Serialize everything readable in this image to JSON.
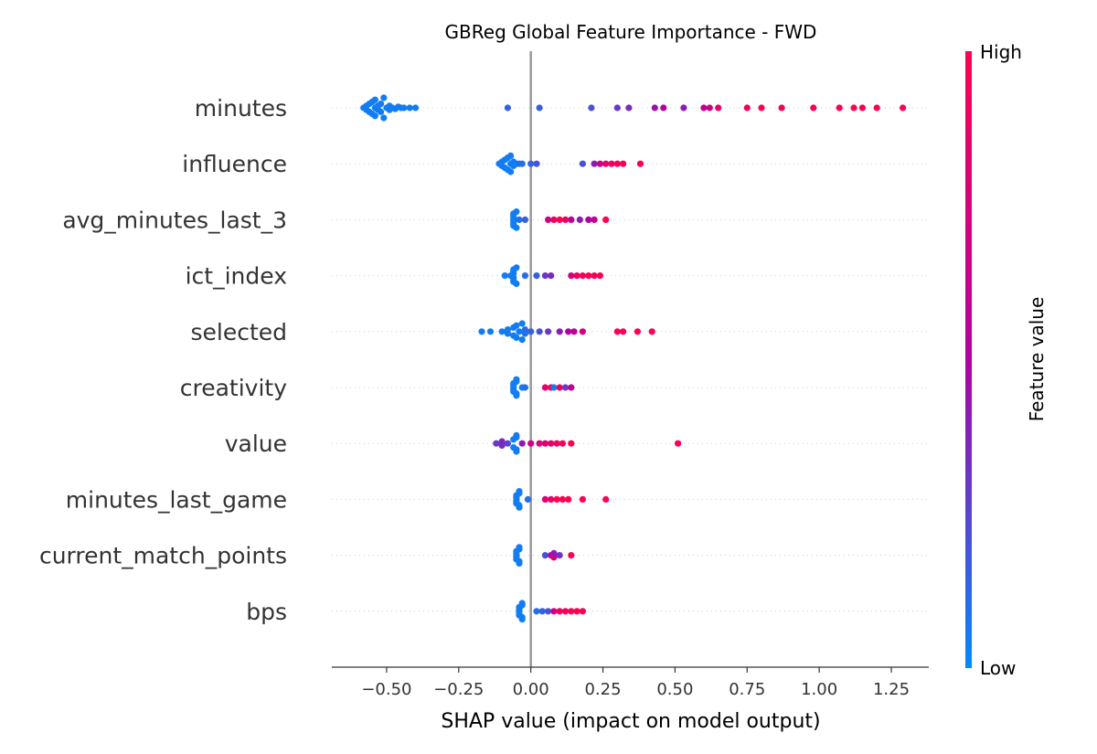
{
  "chart_data": {
    "type": "scatter",
    "subtype": "shap-beeswarm",
    "title": "GBReg Global Feature Importance - FWD",
    "xlabel": "SHAP value (impact on model output)",
    "xlim": [
      -0.69,
      1.38
    ],
    "xticks": [
      -0.5,
      -0.25,
      0.0,
      0.25,
      0.5,
      0.75,
      1.0,
      1.25
    ],
    "xtick_labels": [
      "−0.50",
      "−0.25",
      "0.00",
      "0.25",
      "0.50",
      "0.75",
      "1.00",
      "1.25"
    ],
    "colorbar": {
      "label": "Feature value",
      "high_label": "High",
      "low_label": "Low",
      "low_color": "#008bfb",
      "mid_color": "#b000a3",
      "high_color": "#ff0052"
    },
    "features": [
      {
        "name": "minutes",
        "points": [
          [
            -0.58,
            0.0
          ],
          [
            -0.57,
            0.1
          ],
          [
            -0.57,
            -0.1
          ],
          [
            -0.56,
            0.2
          ],
          [
            -0.56,
            -0.2
          ],
          [
            -0.55,
            0.3
          ],
          [
            -0.55,
            -0.3
          ],
          [
            -0.54,
            0.0
          ],
          [
            -0.54,
            0.4
          ],
          [
            -0.54,
            -0.4
          ],
          [
            -0.53,
            0.1
          ],
          [
            -0.53,
            -0.1
          ],
          [
            -0.52,
            0.2
          ],
          [
            -0.52,
            -0.2
          ],
          [
            -0.51,
            0.5
          ],
          [
            -0.51,
            -0.5
          ],
          [
            -0.5,
            0.0
          ],
          [
            -0.49,
            0.1
          ],
          [
            -0.49,
            -0.1
          ],
          [
            -0.48,
            0.0
          ],
          [
            -0.47,
            0.05
          ],
          [
            -0.46,
            -0.05
          ],
          [
            -0.45,
            0.0
          ],
          [
            -0.44,
            0.0
          ],
          [
            -0.42,
            0.0
          ],
          [
            -0.4,
            0.0
          ],
          [
            -0.08,
            0.0
          ],
          [
            0.03,
            0.0
          ],
          [
            0.21,
            0.0
          ],
          [
            0.3,
            0.0
          ],
          [
            0.34,
            0.0
          ],
          [
            0.43,
            0.0
          ],
          [
            0.46,
            0.0
          ],
          [
            0.53,
            0.0
          ],
          [
            0.6,
            0.0
          ],
          [
            0.62,
            0.0
          ],
          [
            0.65,
            0.0
          ],
          [
            0.75,
            0.0
          ],
          [
            0.8,
            0.0
          ],
          [
            0.87,
            0.0
          ],
          [
            0.98,
            0.0
          ],
          [
            1.07,
            0.0
          ],
          [
            1.12,
            0.0
          ],
          [
            1.15,
            0.0
          ],
          [
            1.2,
            0.0
          ],
          [
            1.29,
            0.0
          ]
        ],
        "colors": [
          0.05,
          0.05,
          0.05,
          0.05,
          0.05,
          0.05,
          0.05,
          0.05,
          0.05,
          0.05,
          0.05,
          0.05,
          0.05,
          0.05,
          0.05,
          0.05,
          0.05,
          0.05,
          0.05,
          0.05,
          0.05,
          0.05,
          0.05,
          0.05,
          0.05,
          0.05,
          0.15,
          0.15,
          0.2,
          0.3,
          0.35,
          0.45,
          0.55,
          0.4,
          0.6,
          0.7,
          0.85,
          0.9,
          0.95,
          0.95,
          1.0,
          1.0,
          1.0,
          1.0,
          1.0,
          1.0
        ]
      },
      {
        "name": "influence",
        "points": [
          [
            -0.11,
            0.0
          ],
          [
            -0.1,
            0.1
          ],
          [
            -0.1,
            -0.1
          ],
          [
            -0.09,
            0.2
          ],
          [
            -0.09,
            -0.2
          ],
          [
            -0.08,
            0.3
          ],
          [
            -0.08,
            -0.3
          ],
          [
            -0.07,
            0.0
          ],
          [
            -0.07,
            0.4
          ],
          [
            -0.07,
            -0.4
          ],
          [
            -0.06,
            0.1
          ],
          [
            -0.06,
            -0.1
          ],
          [
            -0.05,
            0.0
          ],
          [
            -0.04,
            0.0
          ],
          [
            -0.03,
            0.0
          ],
          [
            0.0,
            0.0
          ],
          [
            0.02,
            0.0
          ],
          [
            0.18,
            0.0
          ],
          [
            0.22,
            0.0
          ],
          [
            0.24,
            0.0
          ],
          [
            0.26,
            0.0
          ],
          [
            0.28,
            0.0
          ],
          [
            0.3,
            0.0
          ],
          [
            0.32,
            0.0
          ],
          [
            0.38,
            0.0
          ]
        ],
        "colors": [
          0.05,
          0.05,
          0.05,
          0.05,
          0.05,
          0.05,
          0.05,
          0.05,
          0.05,
          0.05,
          0.05,
          0.05,
          0.05,
          0.1,
          0.1,
          0.15,
          0.2,
          0.2,
          0.4,
          0.7,
          0.85,
          0.9,
          0.95,
          0.95,
          1.0
        ]
      },
      {
        "name": "avg_minutes_last_3",
        "points": [
          [
            -0.06,
            0.0
          ],
          [
            -0.06,
            0.1
          ],
          [
            -0.06,
            -0.1
          ],
          [
            -0.06,
            0.2
          ],
          [
            -0.06,
            -0.2
          ],
          [
            -0.06,
            0.3
          ],
          [
            -0.06,
            -0.3
          ],
          [
            -0.05,
            0.4
          ],
          [
            -0.05,
            -0.4
          ],
          [
            -0.04,
            0.0
          ],
          [
            -0.02,
            0.0
          ],
          [
            0.06,
            0.0
          ],
          [
            0.08,
            0.0
          ],
          [
            0.1,
            0.0
          ],
          [
            0.12,
            0.0
          ],
          [
            0.14,
            0.0
          ],
          [
            0.17,
            0.0
          ],
          [
            0.2,
            0.0
          ],
          [
            0.22,
            0.0
          ],
          [
            0.26,
            0.0
          ]
        ],
        "colors": [
          0.05,
          0.05,
          0.05,
          0.05,
          0.05,
          0.05,
          0.05,
          0.05,
          0.05,
          0.1,
          0.15,
          0.7,
          0.9,
          1.0,
          0.95,
          0.6,
          0.4,
          0.5,
          0.6,
          1.0
        ]
      },
      {
        "name": "ict_index",
        "points": [
          [
            -0.09,
            0.0
          ],
          [
            -0.07,
            0.0
          ],
          [
            -0.06,
            0.1
          ],
          [
            -0.06,
            -0.1
          ],
          [
            -0.06,
            0.2
          ],
          [
            -0.06,
            -0.2
          ],
          [
            -0.06,
            0.3
          ],
          [
            -0.06,
            -0.3
          ],
          [
            -0.05,
            0.4
          ],
          [
            -0.05,
            -0.4
          ],
          [
            -0.02,
            0.0
          ],
          [
            0.02,
            0.0
          ],
          [
            0.05,
            0.0
          ],
          [
            0.07,
            0.0
          ],
          [
            0.14,
            0.0
          ],
          [
            0.16,
            0.0
          ],
          [
            0.18,
            0.0
          ],
          [
            0.2,
            0.0
          ],
          [
            0.22,
            0.0
          ],
          [
            0.24,
            0.0
          ]
        ],
        "colors": [
          0.05,
          0.05,
          0.05,
          0.05,
          0.05,
          0.05,
          0.05,
          0.05,
          0.05,
          0.05,
          0.1,
          0.15,
          0.3,
          0.35,
          0.75,
          0.9,
          0.95,
          1.0,
          0.95,
          1.0
        ]
      },
      {
        "name": "selected",
        "points": [
          [
            -0.17,
            0.0
          ],
          [
            -0.14,
            0.0
          ],
          [
            -0.1,
            0.0
          ],
          [
            -0.08,
            0.1
          ],
          [
            -0.08,
            -0.1
          ],
          [
            -0.06,
            0.2
          ],
          [
            -0.06,
            -0.2
          ],
          [
            -0.05,
            0.3
          ],
          [
            -0.05,
            -0.3
          ],
          [
            -0.04,
            0.0
          ],
          [
            -0.03,
            0.4
          ],
          [
            -0.03,
            -0.4
          ],
          [
            -0.02,
            0.1
          ],
          [
            -0.02,
            -0.1
          ],
          [
            0.0,
            0.0
          ],
          [
            0.03,
            0.0
          ],
          [
            0.06,
            0.0
          ],
          [
            0.1,
            0.0
          ],
          [
            0.13,
            0.0
          ],
          [
            0.15,
            0.0
          ],
          [
            0.18,
            0.0
          ],
          [
            0.3,
            0.0
          ],
          [
            0.32,
            0.0
          ],
          [
            0.37,
            0.0
          ],
          [
            0.42,
            0.0
          ]
        ],
        "colors": [
          0.05,
          0.05,
          0.05,
          0.05,
          0.05,
          0.05,
          0.05,
          0.05,
          0.05,
          0.05,
          0.05,
          0.05,
          0.1,
          0.1,
          0.15,
          0.2,
          0.3,
          0.4,
          0.5,
          0.6,
          0.7,
          1.0,
          1.0,
          1.0,
          1.0
        ]
      },
      {
        "name": "creativity",
        "points": [
          [
            -0.06,
            0.0
          ],
          [
            -0.06,
            0.1
          ],
          [
            -0.06,
            -0.1
          ],
          [
            -0.06,
            0.2
          ],
          [
            -0.06,
            -0.2
          ],
          [
            -0.05,
            0.3
          ],
          [
            -0.05,
            -0.3
          ],
          [
            -0.05,
            0.4
          ],
          [
            -0.05,
            -0.4
          ],
          [
            -0.03,
            0.0
          ],
          [
            -0.02,
            0.0
          ],
          [
            0.05,
            0.0
          ],
          [
            0.07,
            0.0
          ],
          [
            0.08,
            0.0
          ],
          [
            0.1,
            0.0
          ],
          [
            0.12,
            0.0
          ],
          [
            0.14,
            0.0
          ]
        ],
        "colors": [
          0.05,
          0.05,
          0.05,
          0.05,
          0.05,
          0.05,
          0.05,
          0.05,
          0.05,
          0.05,
          0.1,
          0.85,
          0.95,
          0.05,
          0.9,
          0.3,
          0.6
        ]
      },
      {
        "name": "value",
        "points": [
          [
            -0.12,
            0.0
          ],
          [
            -0.1,
            0.1
          ],
          [
            -0.1,
            -0.1
          ],
          [
            -0.08,
            0.0
          ],
          [
            -0.06,
            0.2
          ],
          [
            -0.06,
            -0.2
          ],
          [
            -0.05,
            0.3
          ],
          [
            -0.05,
            -0.3
          ],
          [
            -0.05,
            0.4
          ],
          [
            -0.05,
            -0.4
          ],
          [
            -0.03,
            0.0
          ],
          [
            0.0,
            0.0
          ],
          [
            0.03,
            0.0
          ],
          [
            0.05,
            0.0
          ],
          [
            0.07,
            0.0
          ],
          [
            0.09,
            0.0
          ],
          [
            0.11,
            0.0
          ],
          [
            0.14,
            0.0
          ],
          [
            0.51,
            0.0
          ]
        ],
        "colors": [
          0.3,
          0.35,
          0.35,
          0.25,
          0.05,
          0.05,
          0.05,
          0.05,
          0.05,
          0.05,
          0.4,
          0.7,
          0.75,
          0.8,
          0.85,
          0.9,
          0.95,
          1.0,
          1.0
        ]
      },
      {
        "name": "minutes_last_game",
        "points": [
          [
            -0.05,
            0.0
          ],
          [
            -0.05,
            0.1
          ],
          [
            -0.05,
            -0.1
          ],
          [
            -0.05,
            0.2
          ],
          [
            -0.05,
            -0.2
          ],
          [
            -0.04,
            0.3
          ],
          [
            -0.04,
            -0.3
          ],
          [
            -0.04,
            0.4
          ],
          [
            -0.04,
            -0.4
          ],
          [
            -0.01,
            0.0
          ],
          [
            0.05,
            0.0
          ],
          [
            0.07,
            0.0
          ],
          [
            0.09,
            0.0
          ],
          [
            0.11,
            0.0
          ],
          [
            0.13,
            0.0
          ],
          [
            0.18,
            0.0
          ],
          [
            0.26,
            0.0
          ]
        ],
        "colors": [
          0.05,
          0.05,
          0.05,
          0.05,
          0.05,
          0.05,
          0.05,
          0.05,
          0.05,
          0.1,
          0.8,
          0.9,
          1.0,
          1.0,
          1.0,
          1.0,
          1.0
        ]
      },
      {
        "name": "current_match_points",
        "points": [
          [
            -0.05,
            0.0
          ],
          [
            -0.05,
            0.1
          ],
          [
            -0.05,
            -0.1
          ],
          [
            -0.05,
            0.2
          ],
          [
            -0.05,
            -0.2
          ],
          [
            -0.04,
            0.3
          ],
          [
            -0.04,
            -0.3
          ],
          [
            -0.04,
            0.4
          ],
          [
            -0.04,
            -0.4
          ],
          [
            0.05,
            0.0
          ],
          [
            0.07,
            0.0
          ],
          [
            0.08,
            0.1
          ],
          [
            0.08,
            -0.1
          ],
          [
            0.1,
            0.0
          ],
          [
            0.14,
            0.0
          ]
        ],
        "colors": [
          0.05,
          0.05,
          0.05,
          0.05,
          0.05,
          0.05,
          0.05,
          0.05,
          0.05,
          0.2,
          0.6,
          0.8,
          0.4,
          0.3,
          1.0
        ]
      },
      {
        "name": "bps",
        "points": [
          [
            -0.04,
            0.0
          ],
          [
            -0.04,
            0.1
          ],
          [
            -0.04,
            -0.1
          ],
          [
            -0.04,
            0.2
          ],
          [
            -0.04,
            -0.2
          ],
          [
            -0.03,
            0.3
          ],
          [
            -0.03,
            -0.3
          ],
          [
            -0.03,
            0.4
          ],
          [
            -0.03,
            -0.4
          ],
          [
            0.02,
            0.0
          ],
          [
            0.04,
            0.0
          ],
          [
            0.06,
            0.0
          ],
          [
            0.08,
            0.0
          ],
          [
            0.1,
            0.0
          ],
          [
            0.12,
            0.0
          ],
          [
            0.14,
            0.0
          ],
          [
            0.16,
            0.0
          ],
          [
            0.18,
            0.0
          ]
        ],
        "colors": [
          0.05,
          0.05,
          0.05,
          0.05,
          0.05,
          0.05,
          0.05,
          0.05,
          0.05,
          0.1,
          0.15,
          0.2,
          0.7,
          0.9,
          0.95,
          1.0,
          1.0,
          0.95
        ]
      }
    ]
  }
}
